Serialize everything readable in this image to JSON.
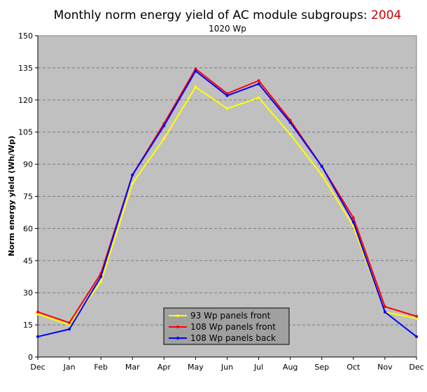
{
  "chart_data": {
    "type": "line",
    "title_prefix": "Monthly norm energy yield of AC module subgroups: ",
    "title_year": "2004",
    "subtitle": "1020 Wp",
    "xlabel": "",
    "ylabel": "Norm energy yield (Wh/Wp)",
    "categories": [
      "Dec",
      "Jan",
      "Feb",
      "Mar",
      "Apr",
      "May",
      "Jun",
      "Jul",
      "Aug",
      "Sep",
      "Oct",
      "Nov",
      "Dec"
    ],
    "ylim": [
      0,
      150
    ],
    "yticks": [
      0,
      15,
      30,
      45,
      60,
      75,
      90,
      105,
      120,
      135,
      150
    ],
    "grid": true,
    "legend_position": "bottom-center",
    "background_color": "#c0c0c0",
    "year_color": "#cc0000",
    "series": [
      {
        "name": "93 Wp panels front",
        "color": "#ffff00",
        "values": [
          20,
          15,
          35,
          81,
          102,
          126,
          116,
          121,
          104,
          85,
          61,
          21,
          18
        ]
      },
      {
        "name": "108 Wp panels front",
        "color": "#ff0000",
        "values": [
          21,
          16,
          39,
          85,
          109,
          134.5,
          123,
          129,
          110.5,
          89,
          65,
          23.5,
          19
        ]
      },
      {
        "name": "108 Wp panels back",
        "color": "#0000ff",
        "values": [
          9.5,
          13,
          37.5,
          85,
          108,
          133.5,
          122,
          127.5,
          109.5,
          89,
          63,
          21,
          9.5
        ]
      }
    ]
  }
}
